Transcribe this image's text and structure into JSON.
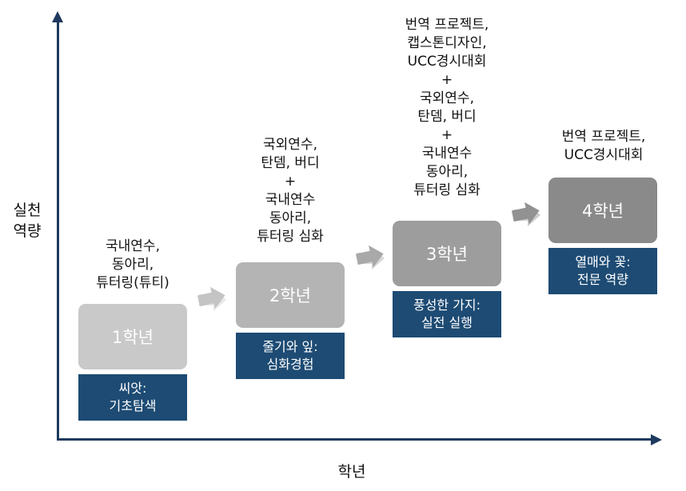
{
  "axes": {
    "y_label_lines": [
      "실천",
      "역량"
    ],
    "x_label": "학년"
  },
  "stages": [
    {
      "year": "1학년",
      "caption": [
        "씨앗:",
        "기초탐색"
      ],
      "activities": [
        "국내연수,",
        "동아리,",
        "튜터링(튜티)"
      ]
    },
    {
      "year": "2학년",
      "caption": [
        "줄기와 잎:",
        "심화경험"
      ],
      "activities": [
        "국외연수,",
        "탄뎀, 버디",
        "+",
        "국내연수",
        "동아리,",
        "튜터링 심화"
      ]
    },
    {
      "year": "3학년",
      "caption": [
        "풍성한 가지:",
        "실전 실행"
      ],
      "activities": [
        "번역 프로젝트,",
        "캡스톤디자인,",
        "UCC경시대회",
        "+",
        "국외연수,",
        "탄뎀, 버디",
        "+",
        "국내연수",
        "동아리,",
        "튜터링 심화"
      ]
    },
    {
      "year": "4학년",
      "caption": [
        "열매와 꽃:",
        "전문 역량"
      ],
      "activities": [
        "번역 프로젝트,",
        "UCC경시대회"
      ]
    }
  ],
  "colors": {
    "axis": "#1f3a5f",
    "caption_bg": "#1d4b73",
    "year_boxes": [
      "#c9c9c9",
      "#b4b4b4",
      "#9d9d9d",
      "#8a8a8a"
    ]
  }
}
